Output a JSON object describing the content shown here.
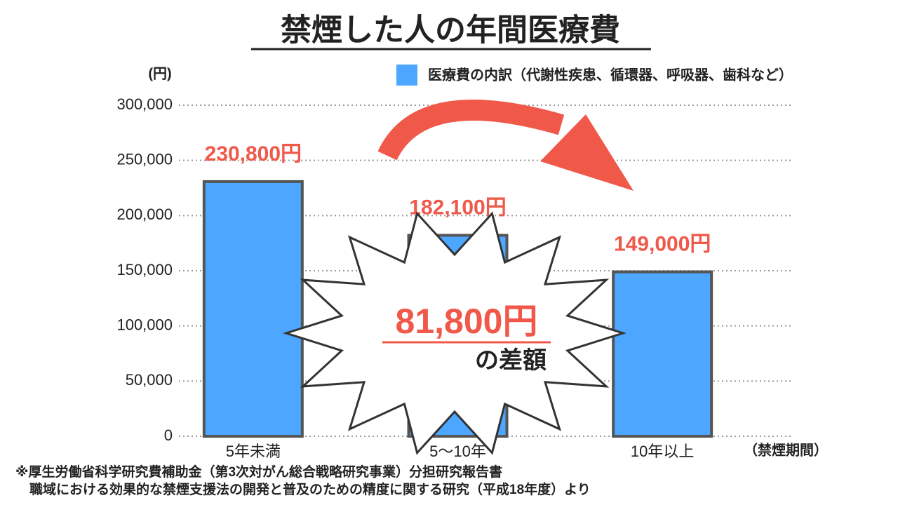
{
  "chart_data": {
    "type": "bar",
    "title": "禁煙した人の年間医療費",
    "y_label": "(円)",
    "x_label": "（禁煙期間）",
    "categories": [
      "5年未満",
      "5〜10年",
      "10年以上"
    ],
    "series": [
      {
        "name": "医療費の内訳（代謝性疾患、循環器、呼吸器、歯科など）",
        "color": "#4da6ff",
        "values": [
          230800,
          182100,
          149000
        ],
        "value_labels": [
          "230,800円",
          "182,100円",
          "149,000円"
        ]
      }
    ],
    "ylim": [
      0,
      300000
    ],
    "yticks": [
      0,
      {
        "value": 50000,
        "label": "50,000"
      },
      {
        "value": 100000,
        "label": "100,000"
      },
      {
        "value": 150000,
        "label": "150,000"
      },
      {
        "value": 200000,
        "label": "200,000"
      },
      {
        "value": 250000,
        "label": "250,000"
      },
      {
        "value": 300000,
        "label": "300,000"
      }
    ],
    "grid": true,
    "annotations": [
      "81,800円",
      "の差額"
    ],
    "footnotes": [
      "※厚生労働省科学研究費補助金（第3次対がん総合戦略研究事業）分担研究報告書",
      "職域における効果的な禁煙支援法の開発と普及のための精度に関する研究（平成18年度）より"
    ]
  }
}
